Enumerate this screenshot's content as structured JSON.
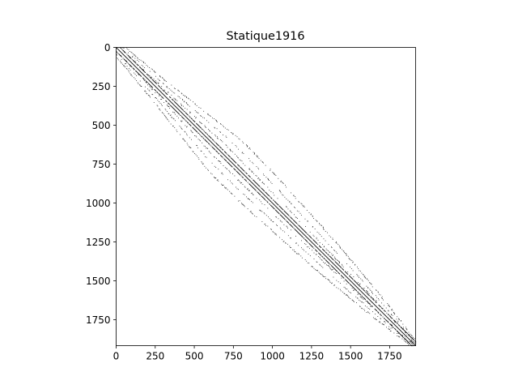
{
  "chart_data": {
    "type": "heatmap",
    "subtype": "sparsity-pattern",
    "title": "Statique1916",
    "matrix_size": 1916,
    "xlim": [
      0,
      1916
    ],
    "ylim": [
      1916,
      0
    ],
    "x_axis_position": "bottom",
    "y_axis_inverted": true,
    "x_ticks": [
      0,
      250,
      500,
      750,
      1000,
      1250,
      1500,
      1750
    ],
    "y_ticks": [
      0,
      250,
      500,
      750,
      1000,
      1250,
      1500,
      1750
    ],
    "x_tick_labels": [
      "0",
      "250",
      "500",
      "750",
      "1000",
      "1250",
      "1500",
      "1750"
    ],
    "y_tick_labels": [
      "0",
      "250",
      "500",
      "750",
      "1000",
      "1250",
      "1500",
      "1750"
    ],
    "grid": false,
    "marker_color": "#000000",
    "symmetric": true,
    "diagonals": [
      {
        "offset": 0,
        "pattern": "solid",
        "density": 1.0
      },
      {
        "offset": 25,
        "pattern": "solid",
        "density": 0.8
      }
    ],
    "band_profile": [
      {
        "row": 0,
        "bandwidth": 60
      },
      {
        "row": 200,
        "bandwidth": 100
      },
      {
        "row": 400,
        "bandwidth": 150
      },
      {
        "row": 600,
        "bandwidth": 205
      },
      {
        "row": 800,
        "bandwidth": 200
      },
      {
        "row": 1000,
        "bandwidth": 180
      },
      {
        "row": 1200,
        "bandwidth": 160
      },
      {
        "row": 1400,
        "bandwidth": 130
      },
      {
        "row": 1600,
        "bandwidth": 95
      },
      {
        "row": 1800,
        "bandwidth": 55
      },
      {
        "row": 1916,
        "bandwidth": 20
      }
    ],
    "off_diagonal_bands": [
      {
        "offset_fraction": 0.35,
        "density": 0.35
      },
      {
        "offset_fraction": 0.65,
        "density": 0.3
      },
      {
        "offset_fraction": 1.0,
        "density": 0.55
      }
    ]
  }
}
